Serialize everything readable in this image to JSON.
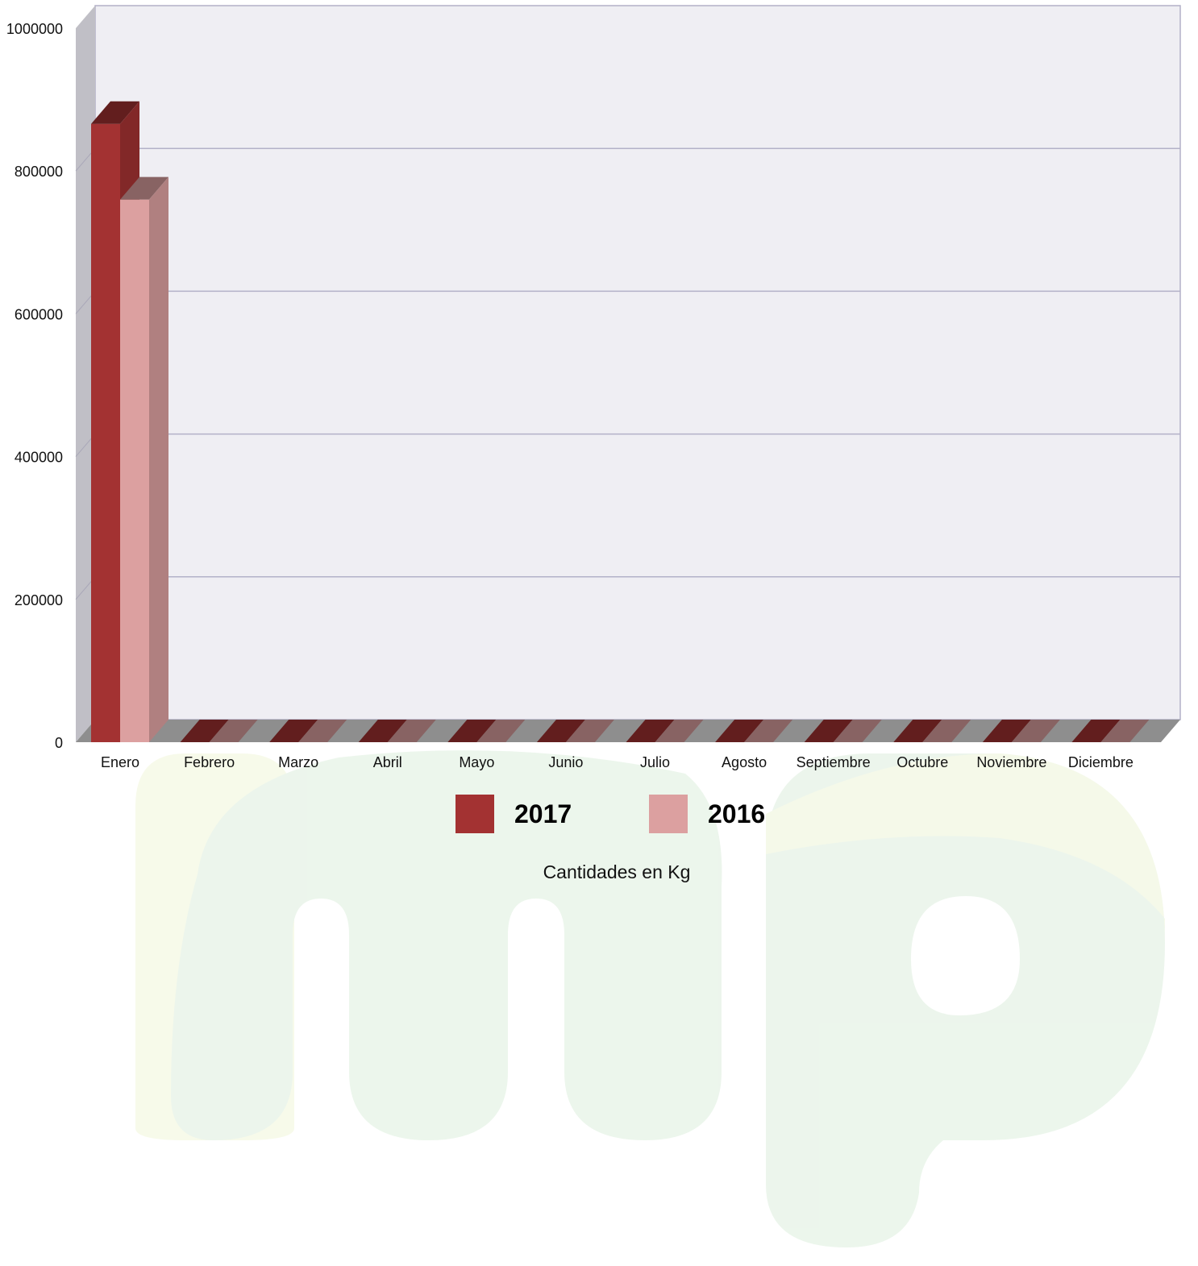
{
  "chart_data": {
    "type": "bar",
    "style": "3d-clustered-column",
    "categories": [
      "Enero",
      "Febrero",
      "Marzo",
      "Abril",
      "Mayo",
      "Junio",
      "Julio",
      "Agosto",
      "Septiembre",
      "Octubre",
      "Noviembre",
      "Diciembre"
    ],
    "series": [
      {
        "name": "2017",
        "color": "#A33232",
        "values": [
          866000,
          0,
          0,
          0,
          0,
          0,
          0,
          0,
          0,
          0,
          0,
          0
        ]
      },
      {
        "name": "2016",
        "color": "#DCA0A0",
        "values": [
          760000,
          0,
          0,
          0,
          0,
          0,
          0,
          0,
          0,
          0,
          0,
          0
        ]
      }
    ],
    "yticks": [
      "0",
      "200000",
      "400000",
      "600000",
      "800000",
      "1000000"
    ],
    "ylim": [
      0,
      1000000
    ],
    "xlabel": "Cantidades en Kg",
    "ylabel": "",
    "grid": true,
    "legend_position": "bottom",
    "background_color": "#EFEEF3",
    "gridline_color": "#B3B1C8",
    "watermark": "mp"
  }
}
